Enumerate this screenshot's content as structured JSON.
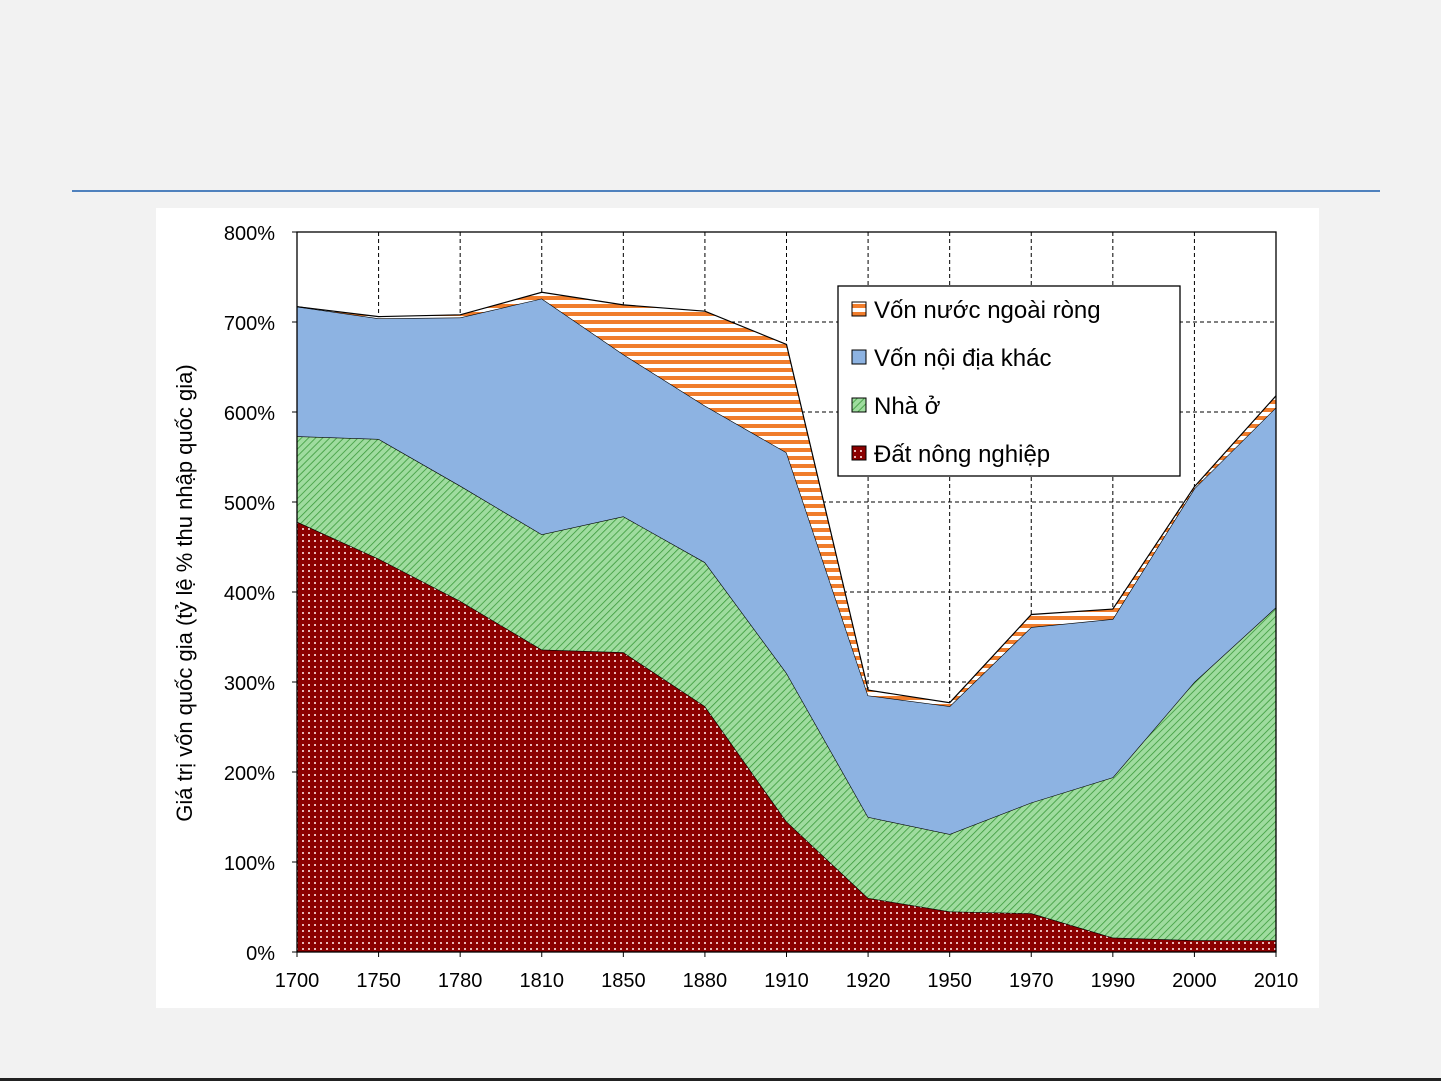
{
  "chart_data": {
    "type": "area",
    "stacked": true,
    "ylabel": "Giá trị vốn quốc gia (tỷ lệ % thu nhập quốc gia)",
    "xlabel": "",
    "ylim": [
      0,
      800
    ],
    "y_ticks": [
      "0%",
      "100%",
      "200%",
      "300%",
      "400%",
      "500%",
      "600%",
      "700%",
      "800%"
    ],
    "categories": [
      "1700",
      "1750",
      "1780",
      "1810",
      "1850",
      "1880",
      "1910",
      "1920",
      "1950",
      "1970",
      "1990",
      "2000",
      "2010"
    ],
    "grid": "dashed major gridlines on both axes",
    "legend_position": "top-right",
    "series": [
      {
        "name": "Đất nông nghiệp",
        "color": "#8b0000",
        "pattern": "dotted-grid",
        "values": [
          478,
          437,
          390,
          336,
          333,
          273,
          145,
          60,
          45,
          43,
          16,
          13,
          13
        ]
      },
      {
        "name": "Nhà ở",
        "color": "#8fd18f",
        "pattern": "diagonal-hatch",
        "values": [
          95,
          133,
          128,
          128,
          151,
          160,
          165,
          90,
          86,
          123,
          178,
          287,
          370
        ]
      },
      {
        "name": "Vốn nội địa khác",
        "color": "#8db3e2",
        "pattern": "solid",
        "values": [
          144,
          134,
          187,
          262,
          180,
          174,
          245,
          135,
          142,
          195,
          176,
          215,
          222
        ]
      },
      {
        "name": "Vốn nước ngoài ròng",
        "color": "#f79646",
        "pattern": "horizontal-stripes",
        "values": [
          0,
          2,
          3,
          7,
          55,
          105,
          120,
          6,
          4,
          14,
          11,
          2,
          13
        ]
      }
    ]
  }
}
